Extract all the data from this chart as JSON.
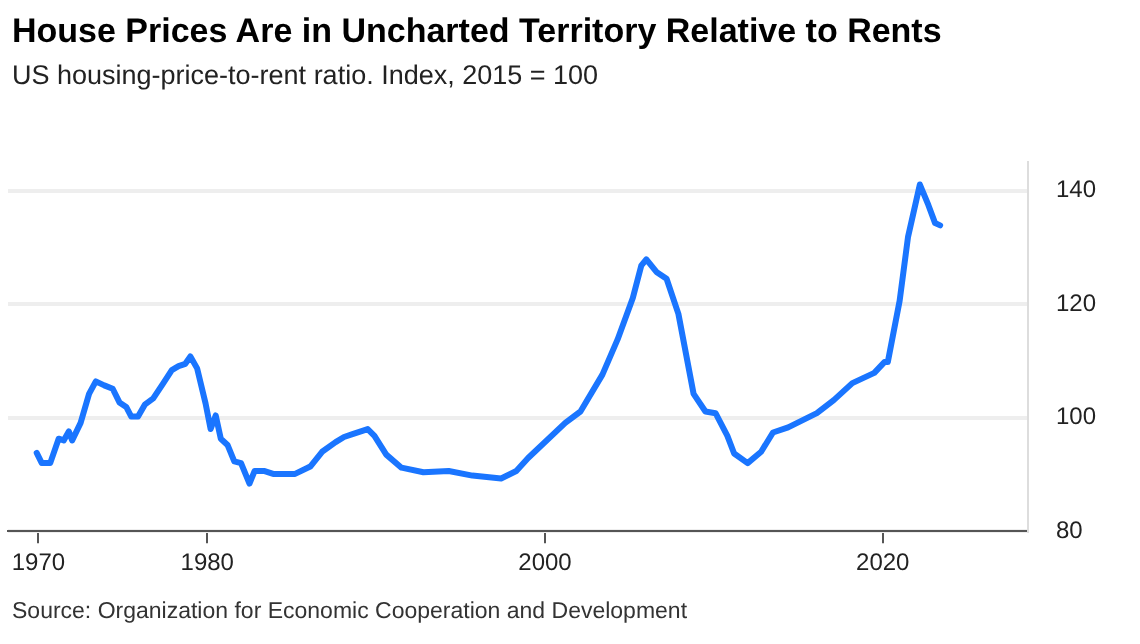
{
  "chart_data": {
    "type": "line",
    "title": "House Prices Are in Uncharted Territory Relative to Rents",
    "subtitle": "US housing-price-to-rent ratio. Index, 2015 = 100",
    "annotations": [
      "Source: Organization for Economic Cooperation and Development"
    ],
    "x": [
      1969.9,
      1970.2,
      1970.7,
      1971.2,
      1971.5,
      1971.8,
      1972.0,
      1972.5,
      1973.0,
      1973.4,
      1973.9,
      1974.4,
      1974.8,
      1975.2,
      1975.5,
      1975.9,
      1976.3,
      1976.8,
      1977.4,
      1977.9,
      1978.3,
      1978.7,
      1979.0,
      1979.4,
      1979.9,
      1980.2,
      1980.5,
      1980.8,
      1981.2,
      1981.6,
      1982.0,
      1982.5,
      1982.8,
      1983.4,
      1983.9,
      1985.2,
      1986.1,
      1986.8,
      1987.6,
      1988.1,
      1988.6,
      1989.5,
      1989.9,
      1990.6,
      1991.5,
      1992.8,
      1994.3,
      1995.7,
      1997.4,
      1998.3,
      1999.0,
      2001.2,
      2002.1,
      2003.4,
      2004.3,
      2005.2,
      2005.7,
      2006.0,
      2006.6,
      2007.2,
      2007.9,
      2008.8,
      2009.5,
      2010.1,
      2010.8,
      2011.2,
      2012.0,
      2012.8,
      2013.5,
      2014.4,
      2016.1,
      2017.1,
      2018.2,
      2019.5,
      2020.1,
      2020.3,
      2021.0,
      2021.5,
      2022.2,
      2022.7,
      2023.1,
      2023.4
    ],
    "series": [
      {
        "color": "#1a75ff",
        "values": [
          93.8,
          92.0,
          92.0,
          96.3,
          96.0,
          97.6,
          96.0,
          99.1,
          104.2,
          106.4,
          105.7,
          105.1,
          102.7,
          101.9,
          100.2,
          100.2,
          102.3,
          103.4,
          106.1,
          108.4,
          109.1,
          109.5,
          110.8,
          108.7,
          102.5,
          98.0,
          100.4,
          96.3,
          95.2,
          92.3,
          92.0,
          88.4,
          90.6,
          90.6,
          90.1,
          90.1,
          91.4,
          94.0,
          95.7,
          96.6,
          97.1,
          98.0,
          96.8,
          93.5,
          91.2,
          90.4,
          90.6,
          89.8,
          89.3,
          90.6,
          92.9,
          99.1,
          101.1,
          107.6,
          113.8,
          121.1,
          126.8,
          127.9,
          125.7,
          124.5,
          118.3,
          104.2,
          101.1,
          100.8,
          96.8,
          93.7,
          92.0,
          94.0,
          97.4,
          98.3,
          100.8,
          103.1,
          106.1,
          107.9,
          109.8,
          109.8,
          120.6,
          131.9,
          141.1,
          137.5,
          134.3,
          133.9
        ]
      }
    ],
    "xlim": [
      1968.2,
      2028.6
    ],
    "xticks": [
      1970,
      1980,
      2000,
      2020
    ],
    "ylim": [
      80,
      145
    ],
    "yticks": [
      80,
      100,
      120,
      140
    ],
    "grid": "y",
    "legend": false,
    "marker": "none",
    "line_style": "solid"
  }
}
